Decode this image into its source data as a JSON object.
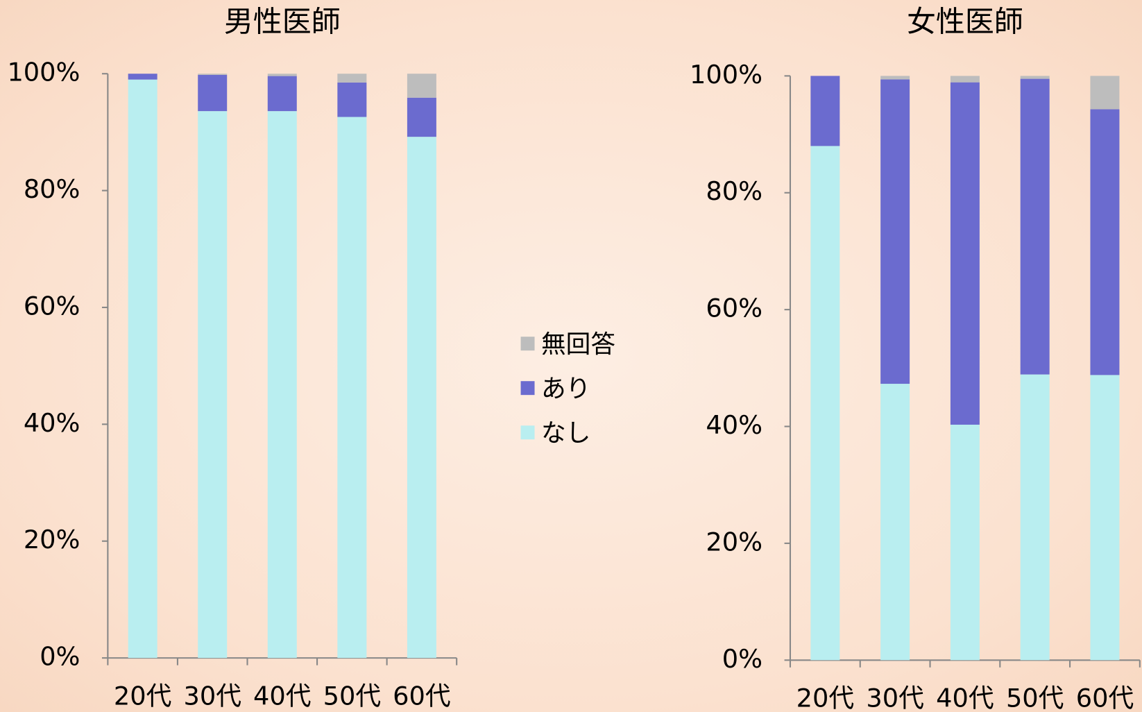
{
  "chart_data": [
    {
      "type": "bar",
      "stacked": true,
      "title": "男性医師",
      "categories": [
        "20代",
        "30代",
        "40代",
        "50代",
        "60代"
      ],
      "series": [
        {
          "name": "なし",
          "color": "#b9eef0",
          "values": [
            99.0,
            93.6,
            93.6,
            92.6,
            89.2
          ]
        },
        {
          "name": "あり",
          "color": "#6b6bcf",
          "values": [
            1.0,
            6.2,
            6.0,
            5.9,
            6.7
          ]
        },
        {
          "name": "無回答",
          "color": "#bdbdbd",
          "values": [
            0,
            0.2,
            0.4,
            1.5,
            4.1
          ]
        }
      ],
      "ylim": [
        0,
        100
      ],
      "yticks": [
        {
          "value": 0,
          "label": "0%"
        },
        {
          "value": 20,
          "label": "20%"
        },
        {
          "value": 40,
          "label": "40%"
        },
        {
          "value": 60,
          "label": "60%"
        },
        {
          "value": 80,
          "label": "80%"
        },
        {
          "value": 100,
          "label": "100%"
        }
      ]
    },
    {
      "type": "bar",
      "stacked": true,
      "title": "女性医師",
      "categories": [
        "20代",
        "30代",
        "40代",
        "50代",
        "60代"
      ],
      "series": [
        {
          "color": "#b9eef0",
          "values": [
            88.0,
            47.3,
            40.3,
            48.9,
            48.8
          ]
        },
        {
          "color": "#6b6bcf",
          "values": [
            12.0,
            52.1,
            58.6,
            50.6,
            45.5
          ]
        },
        {
          "color": "#bdbdbd",
          "values": [
            0,
            0.6,
            1.1,
            0.5,
            5.7
          ]
        }
      ],
      "ylim": [
        0,
        100
      ],
      "yticks": [
        {
          "value": 0,
          "label": "0%"
        },
        {
          "value": 20,
          "label": "20%"
        },
        {
          "value": 40,
          "label": "40%"
        },
        {
          "value": 60,
          "label": "60%"
        },
        {
          "value": 80,
          "label": "80%"
        },
        {
          "value": 100,
          "label": "100%"
        }
      ]
    }
  ]
}
